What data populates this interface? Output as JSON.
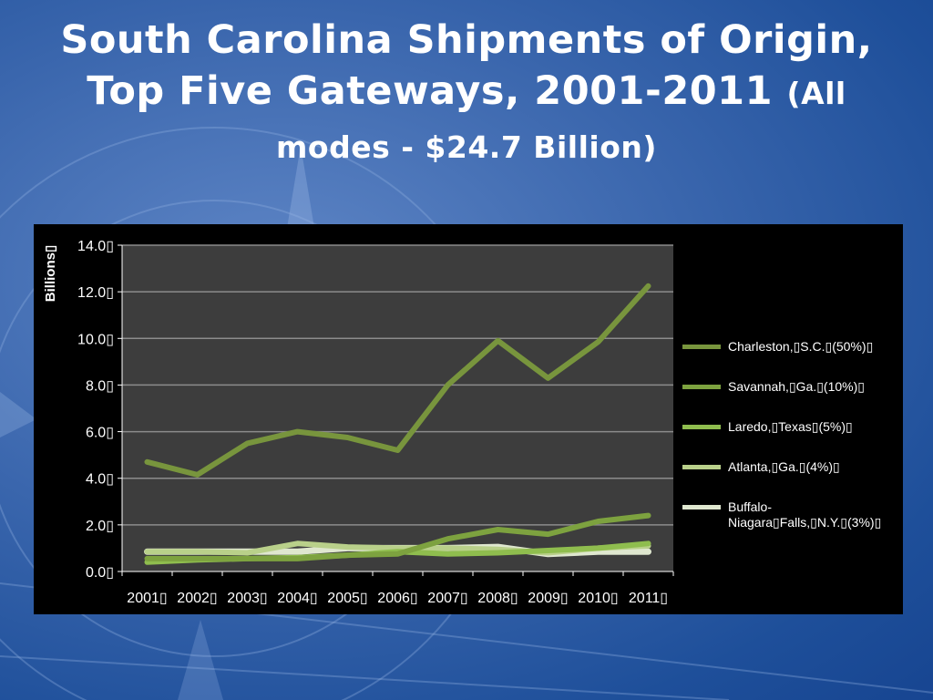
{
  "slide": {
    "title": "South Carolina Shipments of Origin, Top Five Gateways, 2001-2011",
    "subtitle": "(All modes - $24.7 Billion)"
  },
  "colors": {
    "plot_background": "#3d3d3d",
    "chart_background": "#000000",
    "gridline": "#8c8c8c",
    "text": "#ffffff"
  },
  "chart_data": {
    "type": "line",
    "categories": [
      "2001",
      "2002",
      "2003",
      "2004",
      "2005",
      "2006",
      "2007",
      "2008",
      "2009",
      "2010",
      "2011"
    ],
    "category_labels": [
      "2001▯",
      "2002▯",
      "2003▯",
      "2004▯",
      "2005▯",
      "2006▯",
      "2007▯",
      "2008▯",
      "2009▯",
      "2010▯",
      "2011▯"
    ],
    "ylabel": "Billions▯",
    "ylim": [
      0,
      14
    ],
    "yticks": [
      0,
      2,
      4,
      6,
      8,
      10,
      12,
      14
    ],
    "ytick_labels": [
      "0.0▯",
      "2.0▯",
      "4.0▯",
      "6.0▯",
      "8.0▯",
      "10.0▯",
      "12.0▯",
      "14.0▯"
    ],
    "grid": true,
    "legend_position": "right",
    "series": [
      {
        "name": "Charleston,▯S.C.▯(50%)▯",
        "color": "#78953d",
        "values": [
          4.7,
          4.15,
          5.5,
          6.0,
          5.75,
          5.2,
          8.0,
          9.9,
          8.3,
          9.85,
          12.25
        ]
      },
      {
        "name": "Savannah,▯Ga.▯(10%)▯",
        "color": "#7da23f",
        "values": [
          0.55,
          0.55,
          0.55,
          0.55,
          0.7,
          0.75,
          1.4,
          1.8,
          1.6,
          2.15,
          2.4
        ]
      },
      {
        "name": "Laredo,▯Texas▯(5%)▯",
        "color": "#8fbd4e",
        "values": [
          0.4,
          0.5,
          0.55,
          0.6,
          0.7,
          0.85,
          0.75,
          0.8,
          0.9,
          1.0,
          1.2
        ]
      },
      {
        "name": "Atlanta,▯Ga.▯(4%)▯",
        "color": "#b9d08a",
        "values": [
          0.85,
          0.85,
          0.8,
          1.2,
          1.05,
          1.0,
          1.0,
          0.95,
          0.8,
          1.0,
          1.1
        ]
      },
      {
        "name": "Buffalo-Niagara▯Falls,▯N.Y.▯(3%)▯",
        "color": "#dfe7cf",
        "values": [
          0.85,
          0.85,
          0.85,
          0.85,
          1.0,
          1.0,
          1.0,
          1.05,
          0.75,
          0.85,
          0.85
        ]
      }
    ]
  }
}
